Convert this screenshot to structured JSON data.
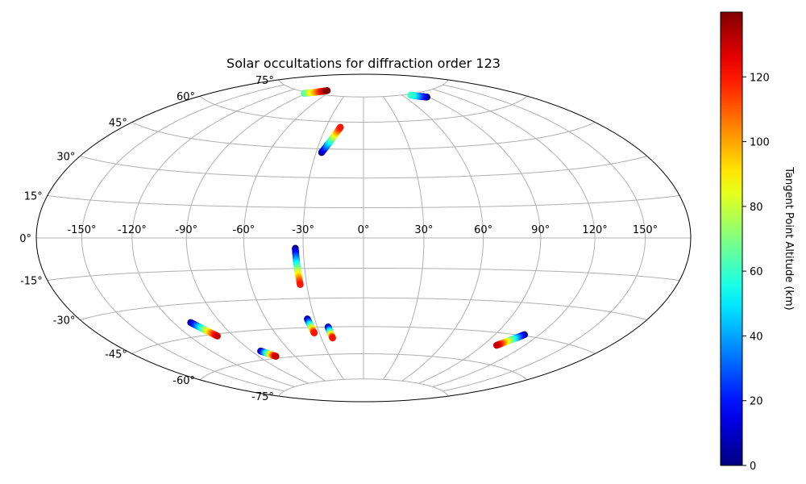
{
  "chart_data": {
    "type": "scatter",
    "projection": "hammer",
    "title": "Solar occultations for diffraction order 123",
    "xlabel": "",
    "ylabel": "",
    "grid": true,
    "lon_ticks": [
      -150,
      -120,
      -90,
      -60,
      -30,
      0,
      30,
      60,
      90,
      120,
      150
    ],
    "lon_tick_labels": [
      "-150°",
      "-120°",
      "-90°",
      "-60°",
      "-30°",
      "0°",
      "30°",
      "60°",
      "90°",
      "120°",
      "150°"
    ],
    "lat_ticks": [
      75,
      60,
      45,
      30,
      15,
      0,
      -15,
      -30,
      -45,
      -60,
      -75
    ],
    "lat_tick_labels": [
      "75°",
      "60°",
      "45°",
      "30°",
      "15°",
      "0°",
      "-15°",
      "-30°",
      "-45°",
      "-60°",
      "-75°"
    ],
    "colorbar": {
      "label": "Tangent Point Altitude (km)",
      "colormap": "jet",
      "range": [
        0,
        140
      ],
      "ticks": [
        0,
        20,
        40,
        60,
        80,
        100,
        120
      ],
      "tick_labels": [
        "0",
        "20",
        "40",
        "60",
        "80",
        "100",
        "120"
      ]
    },
    "tracks": [
      {
        "lon_start": -26.5,
        "lat_start": 43.0,
        "lon_end": -18.5,
        "lat_end": 57.0,
        "alt_start": 0,
        "alt_end": 120
      },
      {
        "lon_start": -34.0,
        "lat_start": -5.0,
        "lon_end": -33.5,
        "lat_end": -23.0,
        "alt_start": 0,
        "alt_end": 120
      },
      {
        "lon_start": -34.5,
        "lat_start": -40.5,
        "lon_end": -33.5,
        "lat_end": -48.0,
        "alt_start": 0,
        "alt_end": 120
      },
      {
        "lon_start": -23.0,
        "lat_start": -45.0,
        "lon_end": -22.0,
        "lat_end": -51.0,
        "alt_start": 0,
        "alt_end": 120
      },
      {
        "lon_start": -109.0,
        "lat_start": -38.5,
        "lon_end": -101.0,
        "lat_end": -46.0,
        "alt_start": 0,
        "alt_end": 130
      },
      {
        "lon_start": -83.0,
        "lat_start": -55.5,
        "lon_end": -76.0,
        "lat_end": -59.0,
        "alt_start": 0,
        "alt_end": 130
      },
      {
        "lon_start": 110.0,
        "lat_start": -44.5,
        "lon_end": 100.0,
        "lat_end": -51.0,
        "alt_start": 0,
        "alt_end": 130
      },
      {
        "lon_start": -93.0,
        "lat_start": 74.2,
        "lon_end": -68.0,
        "lat_end": 77.6,
        "alt_start": 60,
        "alt_end": 140
      },
      {
        "lon_start": 88.0,
        "lat_start": 72.0,
        "lon_end": 72.0,
        "lat_end": 74.3,
        "alt_start": 0,
        "alt_end": 60
      }
    ]
  }
}
